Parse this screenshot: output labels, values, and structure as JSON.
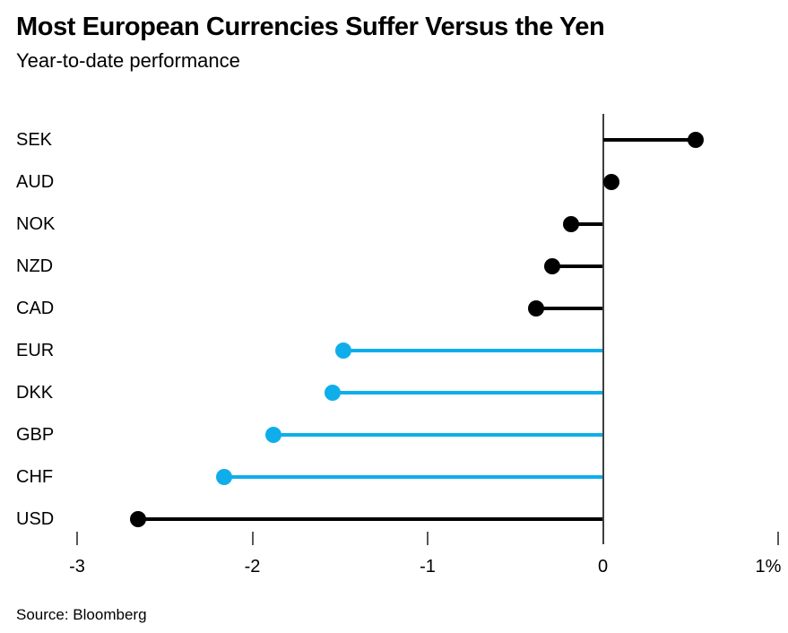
{
  "header": {
    "title": "Most European Currencies Suffer Versus the Yen",
    "subtitle": "Year-to-date performance"
  },
  "footer": {
    "source": "Source: Bloomberg"
  },
  "chart_data": {
    "type": "bar",
    "style": "horizontal-lollipop",
    "title": "Most European Currencies Suffer Versus the Yen",
    "subtitle": "Year-to-date performance",
    "source": "Source: Bloomberg",
    "xlabel": "",
    "ylabel": "",
    "unit": "%",
    "categories": [
      "SEK",
      "AUD",
      "NOK",
      "NZD",
      "CAD",
      "EUR",
      "DKK",
      "GBP",
      "CHF",
      "USD"
    ],
    "values": [
      0.53,
      0.05,
      -0.18,
      -0.29,
      -0.38,
      -1.48,
      -1.54,
      -1.88,
      -2.16,
      -2.65
    ],
    "point_colors": [
      "black",
      "black",
      "black",
      "black",
      "black",
      "blue",
      "blue",
      "blue",
      "blue",
      "black"
    ],
    "colors": {
      "black": "#000000",
      "blue": "#0FAEEB"
    },
    "xlim": [
      -3,
      1
    ],
    "x_ticks": [
      {
        "value": -3,
        "label": "-3"
      },
      {
        "value": -2,
        "label": "-2"
      },
      {
        "value": -1,
        "label": "-1"
      },
      {
        "value": 0,
        "label": "0"
      },
      {
        "value": 1,
        "label": "1%"
      }
    ],
    "zero_line": true,
    "grid": false,
    "legend": "none"
  }
}
